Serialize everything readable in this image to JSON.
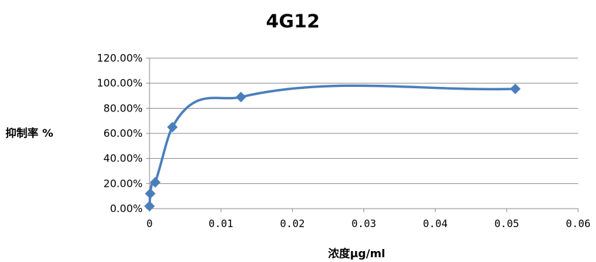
{
  "chart_data": {
    "type": "line",
    "title": "4G12",
    "xlabel": "浓度μg/ml",
    "ylabel": "抑制率 %",
    "xlim": [
      0,
      0.06
    ],
    "ylim": [
      0,
      1.2
    ],
    "x_ticks": [
      "0",
      "0.01",
      "0.02",
      "0.03",
      "0.04",
      "0.05",
      "0.06"
    ],
    "x_tick_values": [
      0,
      0.01,
      0.02,
      0.03,
      0.04,
      0.05,
      0.06
    ],
    "y_ticks": [
      "0.00%",
      "20.00%",
      "40.00%",
      "60.00%",
      "80.00%",
      "100.00%",
      "120.00%"
    ],
    "y_tick_values": [
      0,
      0.2,
      0.4,
      0.6,
      0.8,
      1.0,
      1.2
    ],
    "grid": "horizontal",
    "legend": "none",
    "series": [
      {
        "color": "#4a7ebb",
        "marker": "diamond",
        "smooth": true,
        "x": [
          0.0,
          0.0001,
          0.0008,
          0.0032,
          0.0128,
          0.0512
        ],
        "y": [
          0.02,
          0.12,
          0.21,
          0.65,
          0.89,
          0.955
        ]
      }
    ]
  }
}
